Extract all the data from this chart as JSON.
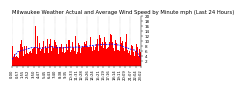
{
  "title": "Milwaukee Weather Actual and Average Wind Speed by Minute mph (Last 24 Hours)",
  "n_points": 1440,
  "y_max": 20,
  "y_min": 0,
  "yticks": [
    2,
    4,
    6,
    8,
    10,
    12,
    14,
    16,
    18,
    20
  ],
  "bar_color": "#ff0000",
  "line_color": "#0000ff",
  "background_color": "#ffffff",
  "grid_color": "#999999",
  "title_fontsize": 3.8,
  "tick_fontsize": 3.0,
  "seed": 42
}
